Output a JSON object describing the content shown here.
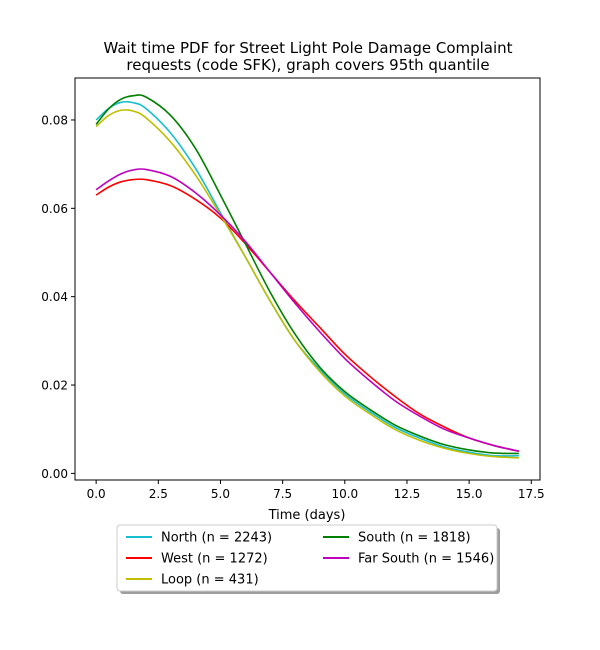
{
  "chart_data": {
    "type": "line",
    "title_line1": "Wait time PDF for Street Light Pole Damage Complaint",
    "title_line2": "requests (code SFK), graph covers 95th quantile",
    "xlabel": "Time (days)",
    "ylabel": "",
    "xlim": [
      -0.85,
      17.85
    ],
    "ylim": [
      -0.0015,
      0.0895
    ],
    "x_ticks": [
      0.0,
      2.5,
      5.0,
      7.5,
      10.0,
      12.5,
      15.0,
      17.5
    ],
    "x_tick_labels": [
      "0.0",
      "2.5",
      "5.0",
      "7.5",
      "10.0",
      "12.5",
      "15.0",
      "17.5"
    ],
    "y_ticks": [
      0.0,
      0.02,
      0.04,
      0.06,
      0.08
    ],
    "y_tick_labels": [
      "0.00",
      "0.02",
      "0.04",
      "0.06",
      "0.08"
    ],
    "grid": false,
    "legend_placement": "below plot, two columns",
    "series": [
      {
        "name": "North (n = 2243)",
        "color": "#17becf",
        "x": [
          0,
          0.5,
          1,
          1.5,
          2,
          3,
          4,
          5,
          6,
          7,
          8,
          9,
          10,
          11,
          12,
          13,
          14,
          15,
          16,
          17
        ],
        "y": [
          0.08,
          0.0826,
          0.084,
          0.0839,
          0.0826,
          0.077,
          0.069,
          0.059,
          0.049,
          0.039,
          0.03,
          0.0235,
          0.018,
          0.014,
          0.0105,
          0.008,
          0.006,
          0.0048,
          0.004,
          0.004
        ]
      },
      {
        "name": "West (n = 1272)",
        "color": "#ff0000",
        "x": [
          0,
          0.5,
          1,
          1.5,
          2,
          3,
          4,
          5,
          6,
          7,
          8,
          9,
          10,
          11,
          12,
          13,
          14,
          15,
          16,
          17
        ],
        "y": [
          0.063,
          0.0648,
          0.066,
          0.0665,
          0.0665,
          0.0651,
          0.062,
          0.0578,
          0.052,
          0.0455,
          0.039,
          0.033,
          0.027,
          0.022,
          0.0175,
          0.0135,
          0.0105,
          0.008,
          0.0063,
          0.005
        ]
      },
      {
        "name": "Loop (n = 431)",
        "color": "#bfbf00",
        "x": [
          0,
          0.5,
          1,
          1.5,
          2,
          3,
          4,
          5,
          6,
          7,
          8,
          9,
          10,
          11,
          12,
          13,
          14,
          15,
          16,
          17
        ],
        "y": [
          0.0785,
          0.081,
          0.0822,
          0.082,
          0.0805,
          0.075,
          0.0675,
          0.0585,
          0.049,
          0.039,
          0.03,
          0.023,
          0.0175,
          0.0135,
          0.01,
          0.0075,
          0.0057,
          0.0045,
          0.0038,
          0.0035
        ]
      },
      {
        "name": "South (n = 1818)",
        "color": "#008000",
        "x": [
          0,
          0.5,
          1,
          1.5,
          2,
          3,
          4,
          5,
          6,
          7,
          8,
          9,
          10,
          11,
          12,
          13,
          14,
          15,
          16,
          17
        ],
        "y": [
          0.079,
          0.0825,
          0.0847,
          0.0855,
          0.0852,
          0.081,
          0.0735,
          0.063,
          0.052,
          0.041,
          0.0315,
          0.024,
          0.0185,
          0.0145,
          0.011,
          0.0085,
          0.0065,
          0.0053,
          0.0046,
          0.0045
        ]
      },
      {
        "name": "Far South (n = 1546)",
        "color": "#bf00bf",
        "x": [
          0,
          0.5,
          1,
          1.5,
          2,
          3,
          4,
          5,
          6,
          7,
          8,
          9,
          10,
          11,
          12,
          13,
          14,
          15,
          16,
          17
        ],
        "y": [
          0.0642,
          0.0662,
          0.0678,
          0.0687,
          0.0688,
          0.0672,
          0.0635,
          0.0585,
          0.0525,
          0.0455,
          0.0385,
          0.032,
          0.026,
          0.021,
          0.0165,
          0.013,
          0.01,
          0.008,
          0.0063,
          0.005
        ]
      }
    ]
  }
}
